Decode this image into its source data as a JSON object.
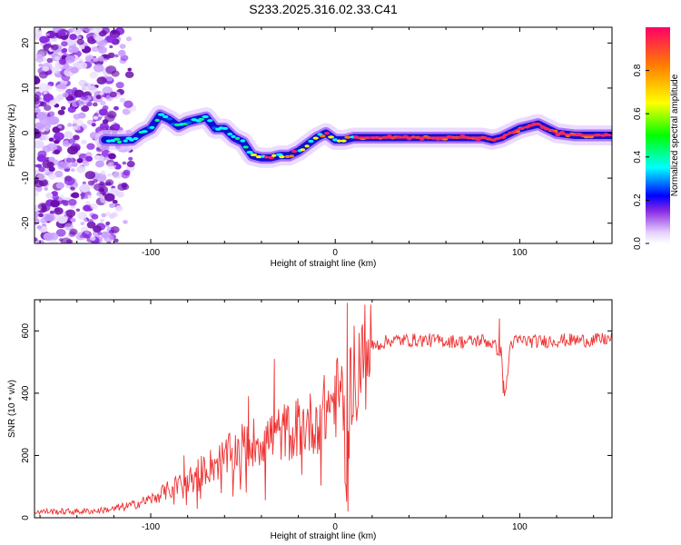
{
  "title": "S233.2025.316.02.33.C41",
  "chart_data": [
    {
      "type": "heatmap",
      "name": "spectrogram",
      "xlabel": "Height of straight line (km)",
      "ylabel": "Frequency (Hz)",
      "xlim": [
        -163,
        150
      ],
      "ylim": [
        -24.5,
        23.5
      ],
      "xticks": [
        -100,
        0,
        100
      ],
      "yticks": [
        -20,
        -10,
        0,
        10,
        20
      ],
      "xtick_labels": [
        "-100",
        "0",
        "100"
      ],
      "ytick_labels": [
        "-20",
        "-10",
        "0",
        "10",
        "20"
      ],
      "ridge": {
        "x": [
          -125,
          -118,
          -110,
          -105,
          -100,
          -95,
          -90,
          -85,
          -80,
          -75,
          -70,
          -65,
          -60,
          -55,
          -50,
          -45,
          -40,
          -35,
          -30,
          -25,
          -20,
          -15,
          -10,
          -5,
          0,
          5,
          10,
          20,
          40,
          60,
          80,
          85,
          90,
          95,
          100,
          105,
          110,
          120,
          130,
          140,
          150
        ],
        "y": [
          -1.5,
          -1.6,
          -1.5,
          0,
          1,
          4,
          3,
          1.5,
          2.5,
          3,
          3.5,
          1,
          1,
          -1,
          -2,
          -5,
          -5.5,
          -5.5,
          -5,
          -5,
          -4,
          -2.5,
          -1,
          0,
          -1.5,
          -1.5,
          -1,
          -1,
          -1,
          -1,
          -1,
          -1.5,
          -1,
          0,
          1,
          1.5,
          2,
          0,
          -0.5,
          -0.5,
          -0.5
        ]
      }
    },
    {
      "type": "line",
      "name": "snr",
      "xlabel": "Height of straight line (km)",
      "ylabel": "SNR (10 * v/v)",
      "xlim": [
        -163,
        150
      ],
      "ylim": [
        0,
        700
      ],
      "xticks": [
        -100,
        0,
        100
      ],
      "yticks": [
        0,
        200,
        400,
        600
      ],
      "xtick_labels": [
        "-100",
        "0",
        "100"
      ],
      "ytick_labels": [
        "0",
        "200",
        "400",
        "600"
      ],
      "series": [
        {
          "name": "SNR",
          "color": "#ee3333",
          "x": [
            -163,
            -150,
            -140,
            -130,
            -120,
            -110,
            -100,
            -90,
            -80,
            -70,
            -60,
            -50,
            -40,
            -30,
            -20,
            -10,
            -5,
            0,
            3,
            5,
            6,
            7,
            8,
            10,
            15,
            20,
            30,
            50,
            70,
            80,
            85,
            90,
            92,
            95,
            100,
            110,
            120,
            130,
            140,
            150
          ],
          "y": [
            20,
            20,
            20,
            22,
            28,
            40,
            60,
            90,
            120,
            160,
            190,
            230,
            250,
            270,
            290,
            310,
            350,
            380,
            400,
            350,
            30,
            260,
            420,
            480,
            520,
            550,
            570,
            570,
            565,
            570,
            560,
            530,
            380,
            560,
            570,
            565,
            570,
            570,
            570,
            575
          ]
        }
      ],
      "spikes": {
        "x": [
          6.5,
          6.9,
          89,
          91,
          -33,
          -47,
          -82
        ],
        "y": [
          690,
          20,
          640,
          400,
          510,
          390,
          200
        ]
      }
    }
  ],
  "colorbar": {
    "label": "Normalized spectral amplitude",
    "range": [
      0,
      1
    ],
    "ticks": [
      0.0,
      0.2,
      0.4,
      0.6,
      0.8
    ],
    "tick_labels": [
      "0.0",
      "0.2",
      "0.4",
      "0.6",
      "0.8"
    ]
  }
}
